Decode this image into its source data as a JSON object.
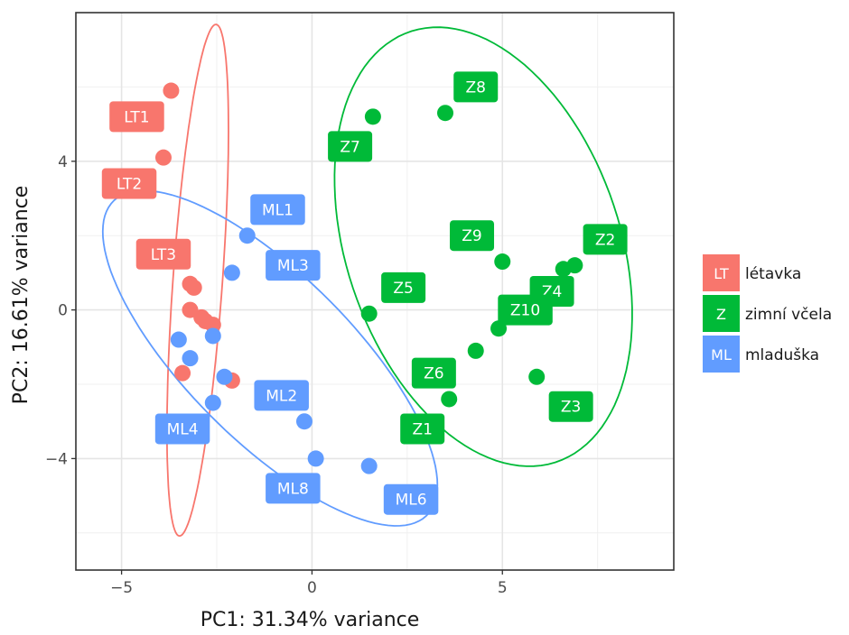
{
  "chart_data": {
    "type": "scatter",
    "title": "",
    "xlabel": "PC1: 31.34% variance",
    "ylabel": "PC2: 16.61% variance",
    "xlim": [
      -6.2,
      9.5
    ],
    "ylim": [
      -7.0,
      8.0
    ],
    "x_ticks": [
      -5,
      0,
      5
    ],
    "y_ticks": [
      -4,
      0,
      4
    ],
    "x_tick_labels": [
      "−5",
      "0",
      "5"
    ],
    "y_tick_labels": [
      "−4",
      "0",
      "4"
    ],
    "grid": true,
    "legend_position": "right",
    "series": [
      {
        "name": "létavka",
        "key": "LT",
        "color": "#F8766D",
        "points": [
          {
            "x": -3.7,
            "y": 5.9
          },
          {
            "x": -3.9,
            "y": 4.1
          },
          {
            "x": -3.2,
            "y": 0.7
          },
          {
            "x": -3.1,
            "y": 0.6
          },
          {
            "x": -3.2,
            "y": 0.0
          },
          {
            "x": -2.9,
            "y": -0.2
          },
          {
            "x": -2.8,
            "y": -0.3
          },
          {
            "x": -2.6,
            "y": -0.4
          },
          {
            "x": -3.4,
            "y": -1.7
          },
          {
            "x": -2.1,
            "y": -1.9
          }
        ],
        "labels": [
          {
            "text": "LT1",
            "x": -4.6,
            "y": 5.2
          },
          {
            "text": "LT2",
            "x": -4.8,
            "y": 3.4
          },
          {
            "text": "LT3",
            "x": -3.9,
            "y": 1.5
          }
        ],
        "ellipse": {
          "cx": -3.0,
          "cy": 0.8,
          "rx": 6.9,
          "ry": 0.65,
          "angle_deg": 86
        }
      },
      {
        "name": "zimní včela",
        "key": "Z",
        "color": "#00BA38",
        "points": [
          {
            "x": 1.6,
            "y": 5.2
          },
          {
            "x": 3.5,
            "y": 5.3
          },
          {
            "x": 6.6,
            "y": 1.1
          },
          {
            "x": 6.9,
            "y": 1.2
          },
          {
            "x": 5.0,
            "y": 1.3
          },
          {
            "x": 1.5,
            "y": -0.1
          },
          {
            "x": 4.9,
            "y": -0.5
          },
          {
            "x": 4.3,
            "y": -1.1
          },
          {
            "x": 5.9,
            "y": -1.8
          },
          {
            "x": 3.6,
            "y": -2.4
          }
        ],
        "labels": [
          {
            "text": "Z8",
            "x": 4.3,
            "y": 6.0
          },
          {
            "text": "Z7",
            "x": 1.0,
            "y": 4.4
          },
          {
            "text": "Z9",
            "x": 4.2,
            "y": 2.0
          },
          {
            "text": "Z2",
            "x": 7.7,
            "y": 1.9
          },
          {
            "text": "Z5",
            "x": 2.4,
            "y": 0.6
          },
          {
            "text": "Z4",
            "x": 6.3,
            "y": 0.5
          },
          {
            "text": "Z10",
            "x": 5.6,
            "y": 0.0
          },
          {
            "text": "Z6",
            "x": 3.2,
            "y": -1.7
          },
          {
            "text": "Z3",
            "x": 6.8,
            "y": -2.6
          },
          {
            "text": "Z1",
            "x": 2.9,
            "y": -3.2
          }
        ],
        "ellipse": {
          "cx": 4.5,
          "cy": 1.7,
          "rx": 6.1,
          "ry": 3.6,
          "angle_deg": -72
        }
      },
      {
        "name": "mladuška",
        "key": "ML",
        "color": "#619CFF",
        "points": [
          {
            "x": -1.7,
            "y": 2.0
          },
          {
            "x": -2.1,
            "y": 1.0
          },
          {
            "x": -3.5,
            "y": -0.8
          },
          {
            "x": -2.6,
            "y": -0.7
          },
          {
            "x": -3.2,
            "y": -1.3
          },
          {
            "x": -2.3,
            "y": -1.8
          },
          {
            "x": -2.6,
            "y": -2.5
          },
          {
            "x": -0.2,
            "y": -3.0
          },
          {
            "x": 0.1,
            "y": -4.0
          },
          {
            "x": 1.5,
            "y": -4.2
          }
        ],
        "labels": [
          {
            "text": "ML1",
            "x": -0.9,
            "y": 2.7
          },
          {
            "text": "ML3",
            "x": -0.5,
            "y": 1.2
          },
          {
            "text": "ML2",
            "x": -0.8,
            "y": -2.3
          },
          {
            "text": "ML4",
            "x": -3.4,
            "y": -3.2
          },
          {
            "text": "ML8",
            "x": -0.5,
            "y": -4.8
          },
          {
            "text": "ML6",
            "x": 2.6,
            "y": -5.1
          }
        ],
        "ellipse": {
          "cx": -1.1,
          "cy": -1.3,
          "rx": 5.9,
          "ry": 2.2,
          "angle_deg": -46
        }
      }
    ]
  }
}
